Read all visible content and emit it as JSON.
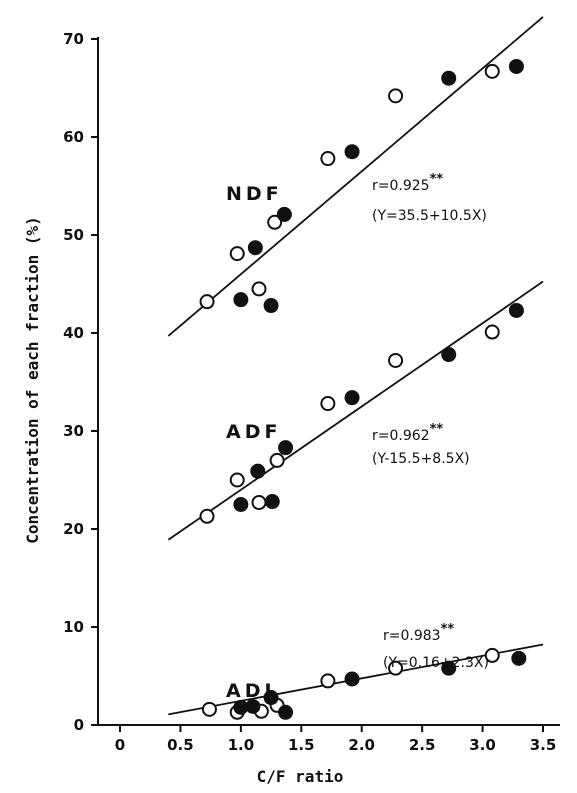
{
  "chart_data": {
    "type": "scatter",
    "xlabel": "C/F ratio",
    "ylabel": "Concentration of each fraction (%)",
    "xlim": [
      0,
      3.5
    ],
    "ylim": [
      0,
      70
    ],
    "xticks": [
      "0",
      "0.5",
      "1.0",
      "1.5",
      "2.0",
      "2.5",
      "3.0",
      "3.5"
    ],
    "yticks": [
      "0",
      "10",
      "20",
      "30",
      "40",
      "50",
      "60",
      "70"
    ],
    "grid": false,
    "series": [
      {
        "name": "NDF",
        "r_text": "r=0.925",
        "significance": "**",
        "equation": "(Y=35.5+10.5X)",
        "fit": {
          "intercept": 35.5,
          "slope": 10.5,
          "x_range": [
            0.4,
            3.5
          ]
        },
        "open_points": [
          [
            0.72,
            43.2
          ],
          [
            0.97,
            48.1
          ],
          [
            1.15,
            44.5
          ],
          [
            1.28,
            51.3
          ],
          [
            1.72,
            57.8
          ],
          [
            2.28,
            64.2
          ],
          [
            3.08,
            66.7
          ]
        ],
        "filled_points": [
          [
            1.0,
            43.4
          ],
          [
            1.12,
            48.7
          ],
          [
            1.25,
            42.8
          ],
          [
            1.36,
            52.1
          ],
          [
            1.92,
            58.5
          ],
          [
            2.72,
            66.0
          ],
          [
            3.28,
            67.2
          ]
        ]
      },
      {
        "name": "ADF",
        "r_text": "r=0.962",
        "significance": "**",
        "equation": "(Y-15.5+8.5X)",
        "fit": {
          "intercept": 15.5,
          "slope": 8.5,
          "x_range": [
            0.4,
            3.5
          ]
        },
        "open_points": [
          [
            0.72,
            21.3
          ],
          [
            0.97,
            25.0
          ],
          [
            1.15,
            22.7
          ],
          [
            1.3,
            27.0
          ],
          [
            1.72,
            32.8
          ],
          [
            2.28,
            37.2
          ],
          [
            3.08,
            40.1
          ]
        ],
        "filled_points": [
          [
            1.0,
            22.5
          ],
          [
            1.14,
            25.9
          ],
          [
            1.26,
            22.8
          ],
          [
            1.37,
            28.3
          ],
          [
            1.92,
            33.4
          ],
          [
            2.72,
            37.8
          ],
          [
            3.28,
            42.3
          ]
        ]
      },
      {
        "name": "ADL",
        "r_text": "r=0.983",
        "significance": "**",
        "equation": "(Y=0.16+2.3X)",
        "fit": {
          "intercept": 0.16,
          "slope": 2.3,
          "x_range": [
            0.4,
            3.5
          ]
        },
        "open_points": [
          [
            0.74,
            1.6
          ],
          [
            0.97,
            1.3
          ],
          [
            1.17,
            1.4
          ],
          [
            1.3,
            2.0
          ],
          [
            1.72,
            4.5
          ],
          [
            2.28,
            5.8
          ],
          [
            3.08,
            7.1
          ]
        ],
        "filled_points": [
          [
            1.0,
            1.8
          ],
          [
            1.1,
            1.9
          ],
          [
            1.25,
            2.8
          ],
          [
            1.37,
            1.3
          ],
          [
            1.92,
            4.7
          ],
          [
            2.72,
            5.8
          ],
          [
            3.3,
            6.8
          ]
        ]
      }
    ]
  }
}
